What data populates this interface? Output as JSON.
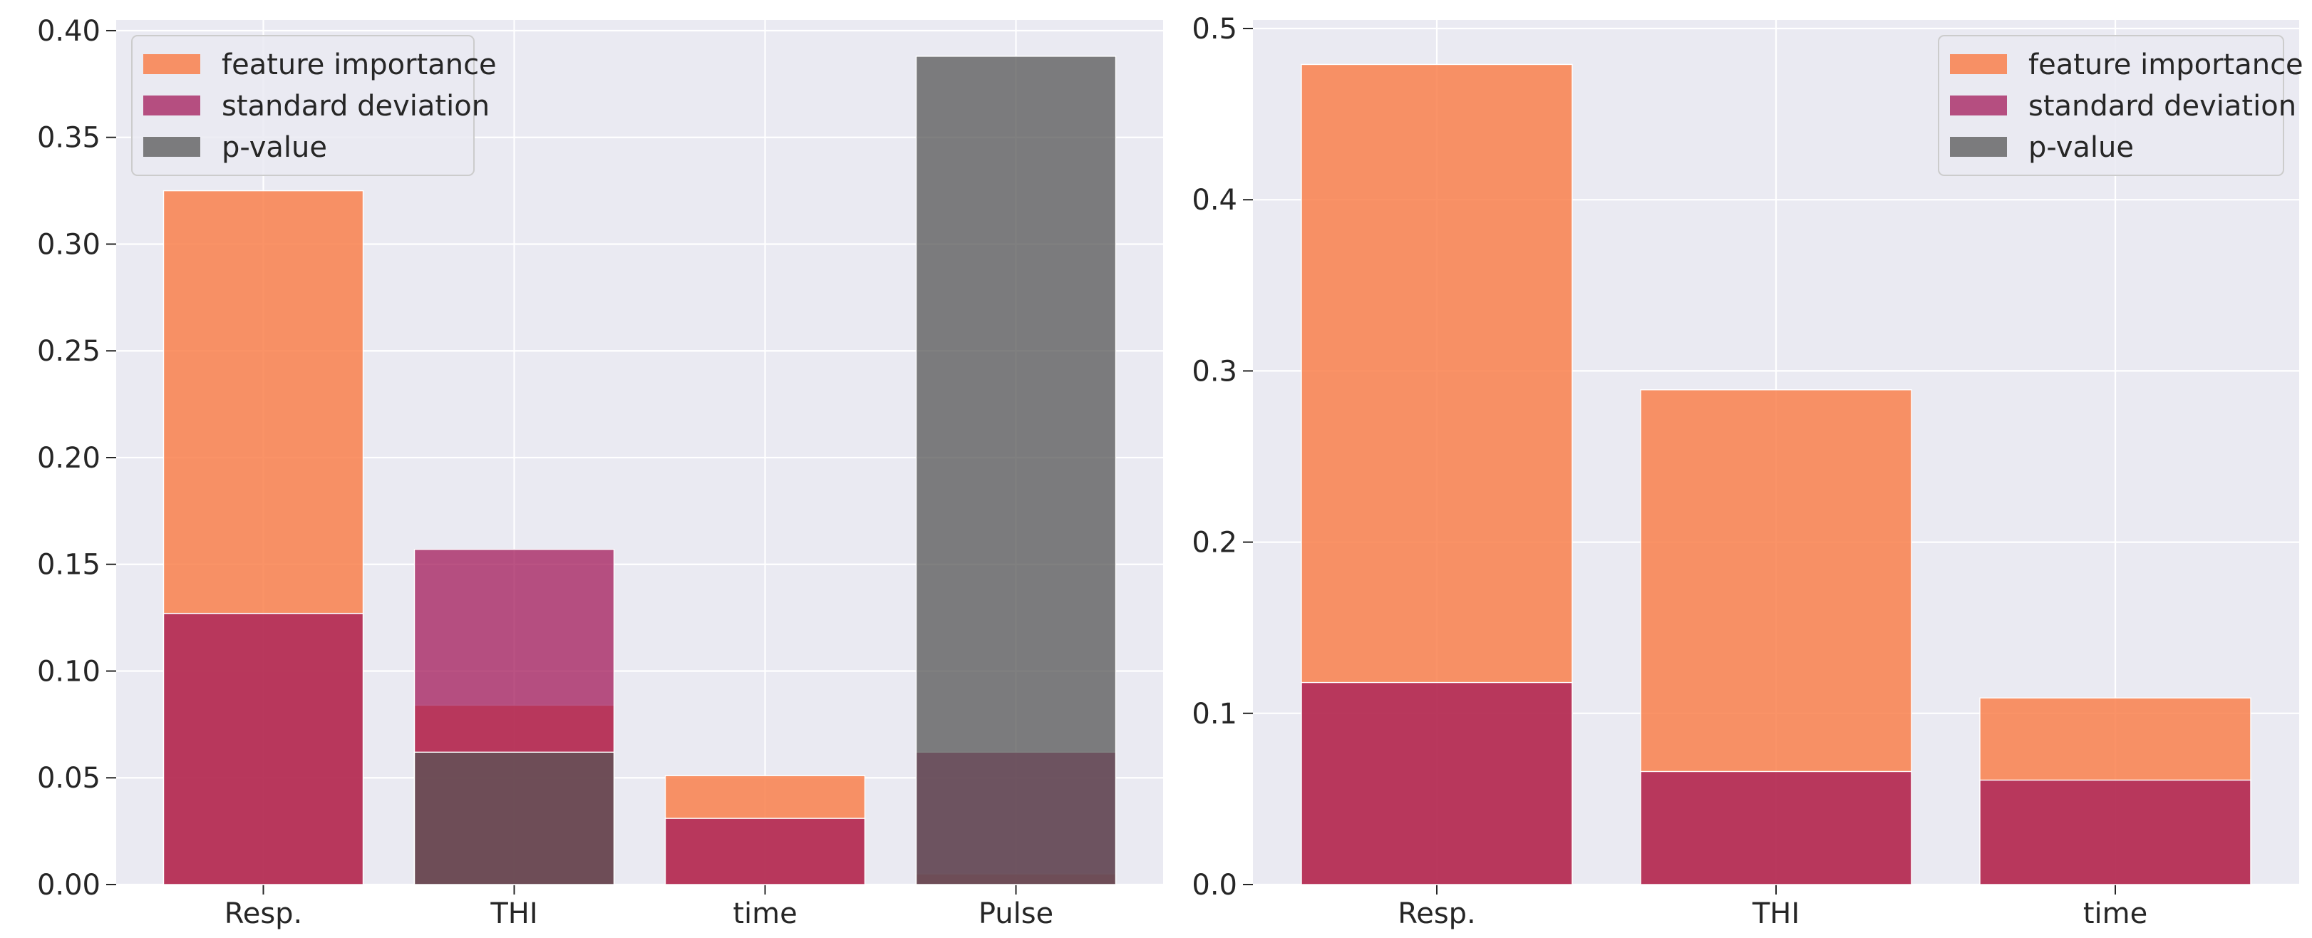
{
  "colors": {
    "feature_importance": "#f9804c",
    "standard_deviation": "#a3195a",
    "p_value": "#555555",
    "background": "#eaeaf2",
    "grid": "#ffffff",
    "text": "#262626"
  },
  "chart_data": [
    {
      "type": "bar",
      "categories": [
        "Resp.",
        "THI",
        "time",
        "Pulse"
      ],
      "series": [
        {
          "name": "feature importance",
          "values": [
            0.325,
            0.084,
            0.051,
            0.005
          ]
        },
        {
          "name": "standard deviation",
          "values": [
            0.127,
            0.157,
            0.031,
            0.062
          ]
        },
        {
          "name": "p-value",
          "values": [
            0.0,
            0.062,
            0.0,
            0.388
          ]
        }
      ],
      "ylim": [
        0,
        0.405
      ],
      "yticks": [
        "0.00",
        "0.05",
        "0.10",
        "0.15",
        "0.20",
        "0.25",
        "0.30",
        "0.35",
        "0.40"
      ],
      "grid": true,
      "legend": "top-left"
    },
    {
      "type": "bar",
      "categories": [
        "Resp.",
        "THI",
        "time"
      ],
      "series": [
        {
          "name": "feature importance",
          "values": [
            0.479,
            0.289,
            0.109
          ]
        },
        {
          "name": "standard deviation",
          "values": [
            0.118,
            0.066,
            0.061
          ]
        },
        {
          "name": "p-value",
          "values": [
            0.0,
            0.0,
            0.0
          ]
        }
      ],
      "ylim": [
        0,
        0.505
      ],
      "yticks": [
        "0.0",
        "0.1",
        "0.2",
        "0.3",
        "0.4",
        "0.5"
      ],
      "grid": true,
      "legend": "top-right"
    }
  ]
}
